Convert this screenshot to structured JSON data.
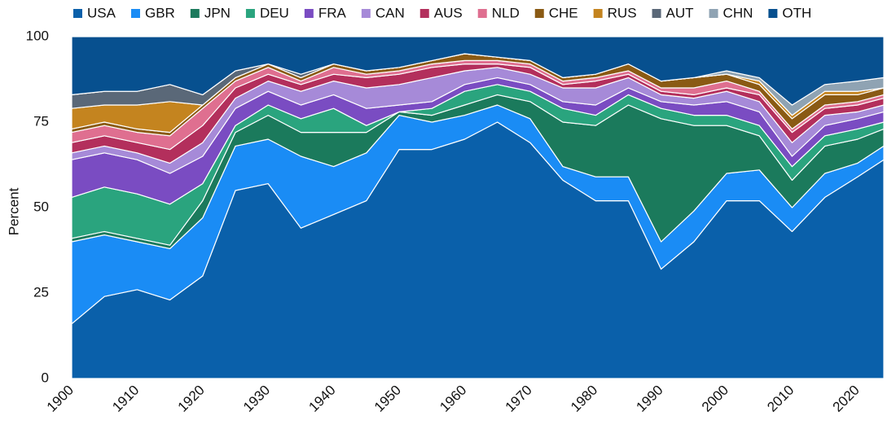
{
  "chart_data": {
    "type": "stacked-area",
    "y_label": "Percent",
    "x": [
      1900,
      1905,
      1910,
      1915,
      1920,
      1925,
      1930,
      1935,
      1940,
      1945,
      1950,
      1955,
      1960,
      1965,
      1970,
      1975,
      1980,
      1985,
      1990,
      1995,
      2000,
      2005,
      2010,
      2015,
      2020,
      2024
    ],
    "xlim": [
      1900,
      2024
    ],
    "xticks": [
      1900,
      1910,
      1920,
      1930,
      1940,
      1950,
      1960,
      1970,
      1980,
      1990,
      2000,
      2010,
      2020
    ],
    "ylim": [
      0,
      100
    ],
    "yticks": [
      0,
      25,
      50,
      75,
      100
    ],
    "grid": false,
    "legend": "top",
    "series": [
      {
        "name": "USA",
        "color": "#0a60aa",
        "values": [
          16,
          24,
          26,
          23,
          30,
          55,
          57,
          44,
          48,
          52,
          67,
          67,
          70,
          75,
          69,
          58,
          52,
          52,
          32,
          40,
          52,
          52,
          43,
          53,
          59,
          64
        ]
      },
      {
        "name": "GBR",
        "color": "#1a8cf5",
        "values": [
          24,
          18,
          14,
          15,
          17,
          13,
          13,
          21,
          14,
          14,
          10,
          8,
          7,
          5,
          7,
          4,
          7,
          7,
          8,
          9,
          8,
          9,
          7,
          7,
          4,
          4
        ]
      },
      {
        "name": "JPN",
        "color": "#1b7a5c",
        "values": [
          1,
          1,
          1,
          1,
          5,
          4,
          7,
          7,
          10,
          6,
          1,
          2,
          3,
          3,
          5,
          13,
          15,
          21,
          36,
          25,
          14,
          10,
          8,
          8,
          7,
          5
        ]
      },
      {
        "name": "DEU",
        "color": "#2aa47e",
        "values": [
          12,
          13,
          13,
          12,
          5,
          2,
          3,
          4,
          7,
          2,
          0,
          2,
          4,
          3,
          3,
          4,
          3,
          3,
          3,
          3,
          3,
          3,
          4,
          3,
          3,
          2
        ]
      },
      {
        "name": "FRA",
        "color": "#7a4cc2",
        "values": [
          11,
          10,
          10,
          9,
          8,
          5,
          4,
          4,
          4,
          5,
          2,
          2,
          2,
          2,
          2,
          2,
          3,
          2,
          2,
          3,
          4,
          4,
          3,
          3,
          3,
          3
        ]
      },
      {
        "name": "CAN",
        "color": "#a68ad8",
        "values": [
          2,
          2,
          2,
          3,
          4,
          3,
          3,
          4,
          4,
          6,
          6,
          7,
          4,
          3,
          3,
          4,
          5,
          3,
          2,
          2,
          3,
          3,
          4,
          3,
          2,
          2
        ]
      },
      {
        "name": "AUS",
        "color": "#b32f5c",
        "values": [
          3,
          3,
          3,
          4,
          5,
          3,
          2,
          2,
          2,
          3,
          3,
          3,
          2,
          1,
          2,
          1,
          2,
          1,
          1,
          1,
          1,
          2,
          3,
          2,
          2,
          2
        ]
      },
      {
        "name": "NLD",
        "color": "#df6f90",
        "values": [
          3,
          3,
          3,
          4,
          5,
          2,
          2,
          1,
          2,
          1,
          1,
          1,
          1,
          1,
          1,
          1,
          1,
          1,
          1,
          2,
          2,
          1,
          1,
          1,
          1,
          1
        ]
      },
      {
        "name": "CHE",
        "color": "#8a5a14",
        "values": [
          1,
          1,
          1,
          1,
          1,
          1,
          1,
          1,
          1,
          1,
          1,
          1,
          2,
          1,
          1,
          1,
          1,
          2,
          2,
          3,
          2,
          2,
          3,
          3,
          2,
          2
        ]
      },
      {
        "name": "RUS",
        "color": "#c4841f",
        "values": [
          6,
          5,
          7,
          9,
          0,
          0,
          0,
          0,
          0,
          0,
          0,
          0,
          0,
          0,
          0,
          0,
          0,
          0,
          0,
          0,
          0,
          1,
          1,
          1,
          1,
          0
        ]
      },
      {
        "name": "AUT",
        "color": "#5a6878",
        "values": [
          4,
          4,
          4,
          5,
          3,
          2,
          0,
          1,
          0,
          0,
          0,
          0,
          0,
          0,
          0,
          0,
          0,
          0,
          0,
          0,
          0,
          0,
          0,
          0,
          0,
          0
        ]
      },
      {
        "name": "CHN",
        "color": "#8fa3b3",
        "values": [
          0,
          0,
          0,
          0,
          0,
          0,
          0,
          0,
          0,
          0,
          0,
          0,
          0,
          0,
          0,
          0,
          0,
          0,
          0,
          0,
          1,
          1,
          3,
          2,
          3,
          3
        ]
      },
      {
        "name": "OTH",
        "color": "#07508f",
        "values": [
          17,
          16,
          16,
          14,
          17,
          10,
          8,
          11,
          8,
          10,
          9,
          7,
          5,
          6,
          7,
          12,
          11,
          8,
          13,
          12,
          10,
          12,
          20,
          14,
          13,
          12
        ]
      }
    ]
  }
}
